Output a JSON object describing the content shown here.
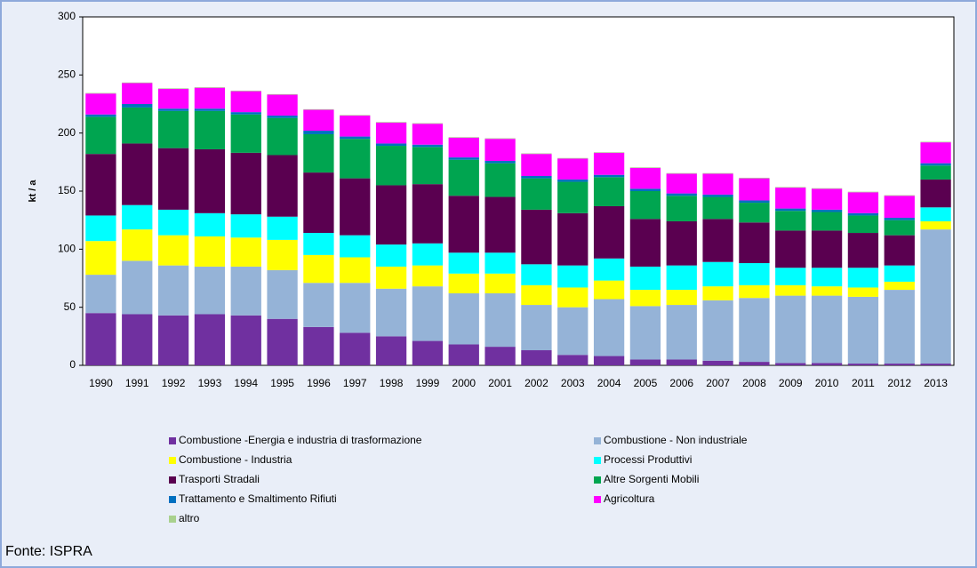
{
  "chart_data": {
    "type": "stacked_bar",
    "y_label": "kt / a",
    "source": "Fonte: ISPRA",
    "categories": [
      "1990",
      "1991",
      "1992",
      "1993",
      "1994",
      "1995",
      "1996",
      "1997",
      "1998",
      "1999",
      "2000",
      "2001",
      "2002",
      "2003",
      "2004",
      "2005",
      "2006",
      "2007",
      "2008",
      "2009",
      "2010",
      "2011",
      "2012",
      "2013"
    ],
    "ylim": [
      0,
      300
    ],
    "yticks": [
      0,
      50,
      100,
      150,
      200,
      250,
      300
    ],
    "series": [
      {
        "name": "Combustione -Energia e industria di trasformazione",
        "color": "#7030a0",
        "values": [
          45,
          44,
          43,
          44,
          43,
          40,
          33,
          28,
          25,
          21,
          18,
          16,
          13,
          9,
          8,
          5,
          5,
          4,
          3,
          2,
          2,
          1.5,
          1.5,
          1.5
        ]
      },
      {
        "name": "Combustione - Non industriale",
        "color": "#95b3d7",
        "values": [
          33,
          46,
          43,
          41,
          42,
          42,
          38,
          43,
          41,
          47,
          44,
          46,
          39,
          41,
          49,
          46,
          47,
          52,
          55,
          58,
          58,
          57.5,
          63.5,
          115.5
        ]
      },
      {
        "name": "Combustione - Industria",
        "color": "#ffff00",
        "values": [
          29,
          27,
          26,
          26,
          25,
          26,
          24,
          22,
          19,
          18,
          17,
          17,
          17,
          17,
          16,
          14,
          13,
          12,
          11,
          9,
          8,
          8,
          7,
          7
        ]
      },
      {
        "name": "Processi Produttivi",
        "color": "#00ffff",
        "values": [
          22,
          21,
          22,
          20,
          20,
          20,
          19,
          19,
          19,
          19,
          18,
          18,
          18,
          19,
          19,
          20,
          21,
          21,
          19,
          15,
          16,
          17,
          14,
          12
        ]
      },
      {
        "name": "Trasporti Stradali",
        "color": "#5a0050",
        "values": [
          53,
          53,
          53,
          55,
          53,
          53,
          52,
          49,
          51,
          51,
          49,
          48,
          47,
          45,
          45,
          41,
          38,
          37,
          35,
          32,
          32,
          30,
          26,
          24
        ]
      },
      {
        "name": "Altre Sorgenti Mobili",
        "color": "#00a550",
        "values": [
          32,
          31,
          32,
          33,
          33,
          32,
          33,
          34,
          34,
          32,
          31,
          29,
          27,
          27,
          25,
          24,
          22,
          19,
          17,
          17,
          16,
          15,
          13,
          12
        ]
      },
      {
        "name": "Trattamento e Smaltimento Rifiuti",
        "color": "#0070c0",
        "values": [
          2,
          3,
          2,
          2,
          2,
          2,
          3,
          2,
          2,
          2,
          2,
          2,
          2,
          2,
          2,
          2,
          2,
          2,
          2,
          2,
          2,
          2,
          2,
          2
        ]
      },
      {
        "name": "Agricoltura",
        "color": "#ff00ff",
        "values": [
          18,
          18,
          17,
          18,
          18,
          18,
          18,
          18,
          18,
          18,
          17,
          19,
          19,
          18,
          19,
          18,
          17,
          18,
          19,
          18,
          18,
          18,
          19,
          18
        ]
      },
      {
        "name": "altro",
        "color": "#a9d18e",
        "values": [
          0.5,
          0.5,
          0.5,
          0.5,
          0.5,
          0.5,
          0.5,
          0.5,
          0.5,
          0.5,
          0.5,
          0.5,
          0.5,
          0.5,
          0.5,
          0.5,
          0.5,
          0.5,
          0.5,
          0.5,
          0.5,
          0.5,
          0.5,
          0.5
        ]
      }
    ]
  }
}
